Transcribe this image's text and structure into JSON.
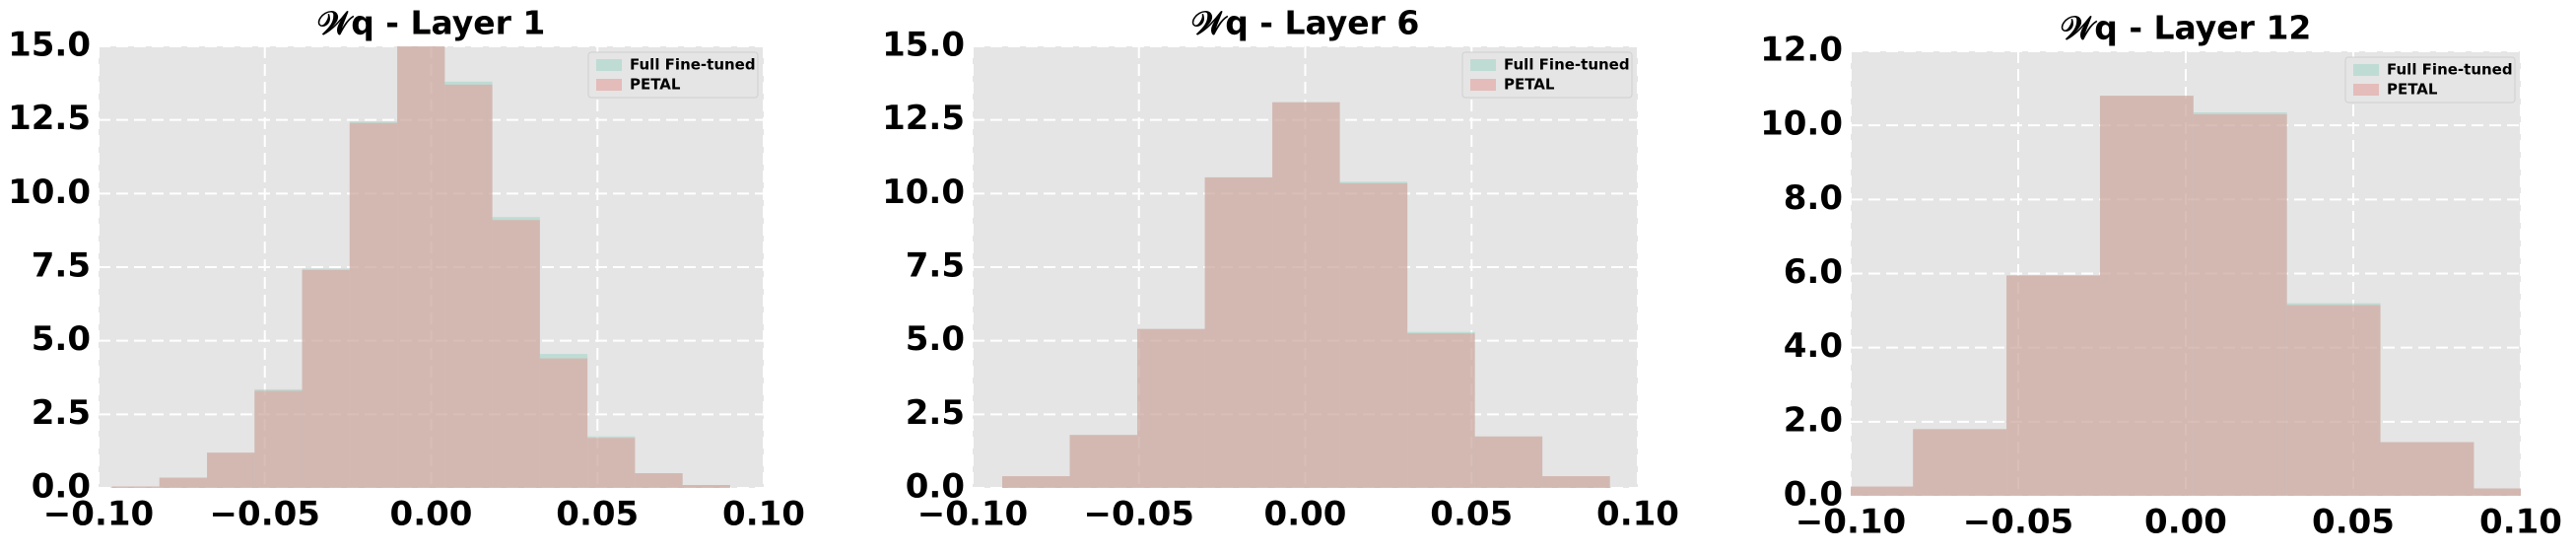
{
  "chart_data": [
    {
      "type": "histogram",
      "title": "𝒲q - Layer 1",
      "bins": [
        -0.096,
        -0.0817,
        -0.0674,
        -0.0531,
        -0.0388,
        -0.0245,
        -0.0102,
        0.0041,
        0.0184,
        0.0327,
        0.047,
        0.0613,
        0.0756,
        0.0899
      ],
      "series": [
        {
          "name": "Full Fine-tuned",
          "color": "#9fd6c6",
          "values": [
            0.05,
            0.35,
            1.2,
            3.35,
            7.45,
            12.45,
            15.2,
            13.8,
            9.2,
            4.55,
            1.75,
            0.5,
            0.1
          ]
        },
        {
          "name": "PETAL",
          "color": "#e39a95",
          "values": [
            0.05,
            0.35,
            1.2,
            3.3,
            7.4,
            12.4,
            15.2,
            13.7,
            9.1,
            4.4,
            1.7,
            0.5,
            0.1
          ]
        }
      ],
      "xlim": [
        -0.1,
        0.1
      ],
      "ylim": [
        0,
        15
      ],
      "xticks": [
        {
          "value": -0.1,
          "label": "−0.10"
        },
        {
          "value": -0.05,
          "label": "−0.05"
        },
        {
          "value": 0,
          "label": "0.00"
        },
        0.05,
        {
          "value": 0.1,
          "label": "0.10"
        }
      ],
      "yticks": [
        {
          "value": 0,
          "label": "0.0"
        },
        2.5,
        {
          "value": 5,
          "label": "5.0"
        },
        7.5,
        {
          "value": 10,
          "label": "10.0"
        },
        12.5,
        {
          "value": 15,
          "label": "15.0"
        }
      ],
      "grid": true,
      "legend": "upper right"
    },
    {
      "type": "histogram",
      "title": "𝒲q - Layer 6",
      "bins": [
        -0.0911,
        -0.0708,
        -0.0505,
        -0.0302,
        -0.0099,
        0.0104,
        0.0307,
        0.051,
        0.0713,
        0.0916
      ],
      "series": [
        {
          "name": "Full Fine-tuned",
          "color": "#9fd6c6",
          "values": [
            0.4,
            1.8,
            5.4,
            10.55,
            13.1,
            10.4,
            5.3,
            1.75,
            0.4
          ]
        },
        {
          "name": "PETAL",
          "color": "#e39a95",
          "values": [
            0.4,
            1.8,
            5.4,
            10.55,
            13.1,
            10.35,
            5.25,
            1.75,
            0.4
          ]
        }
      ],
      "xlim": [
        -0.1,
        0.1
      ],
      "ylim": [
        0,
        15
      ],
      "xticks": [
        {
          "value": -0.1,
          "label": "−0.10"
        },
        {
          "value": -0.05,
          "label": "−0.05"
        },
        {
          "value": 0,
          "label": "0.00"
        },
        0.05,
        {
          "value": 0.1,
          "label": "0.10"
        }
      ],
      "yticks": [
        {
          "value": 0,
          "label": "0.0"
        },
        2.5,
        {
          "value": 5,
          "label": "5.0"
        },
        7.5,
        {
          "value": 10,
          "label": "10.0"
        },
        12.5,
        {
          "value": 15,
          "label": "15.0"
        }
      ],
      "grid": true,
      "legend": "upper right"
    },
    {
      "type": "histogram",
      "title": "𝒲q - Layer 12",
      "bins": [
        -0.1093,
        -0.0814,
        -0.0535,
        -0.0256,
        0.0023,
        0.0302,
        0.0581,
        0.086,
        0.1139
      ],
      "series": [
        {
          "name": "Full Fine-tuned",
          "color": "#9fd6c6",
          "values": [
            0.25,
            1.8,
            5.95,
            10.8,
            10.35,
            5.2,
            1.45,
            0.2
          ]
        },
        {
          "name": "PETAL",
          "color": "#e39a95",
          "values": [
            0.25,
            1.8,
            5.95,
            10.8,
            10.3,
            5.15,
            1.45,
            0.2
          ]
        }
      ],
      "xlim": [
        -0.1,
        0.1
      ],
      "ylim": [
        0,
        12
      ],
      "xticks": [
        {
          "value": -0.1,
          "label": "−0.10"
        },
        {
          "value": -0.05,
          "label": "−0.05"
        },
        {
          "value": 0,
          "label": "0.00"
        },
        0.05,
        {
          "value": 0.1,
          "label": "0.10"
        }
      ],
      "yticks": [
        {
          "value": 0,
          "label": "0.0"
        },
        {
          "value": 2,
          "label": "2.0"
        },
        {
          "value": 4,
          "label": "4.0"
        },
        {
          "value": 6,
          "label": "6.0"
        },
        {
          "value": 8,
          "label": "8.0"
        },
        {
          "value": 10,
          "label": "10.0"
        },
        {
          "value": 12,
          "label": "12.0"
        }
      ],
      "grid": true,
      "legend": "upper right"
    }
  ]
}
